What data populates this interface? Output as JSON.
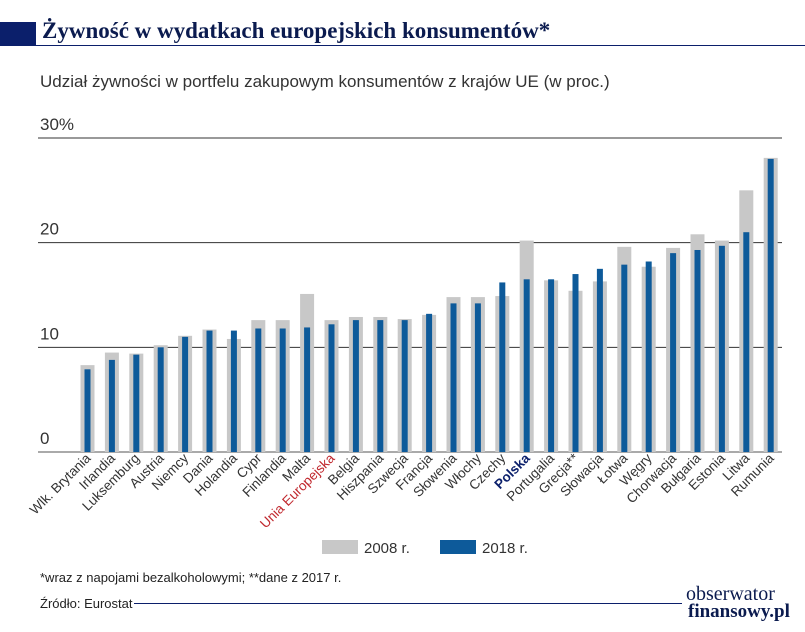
{
  "title": "Żywność w wydatkach europejskich konsumentów*",
  "subtitle": "Udział żywności w portfelu zakupowym konsumentów z krajów UE (w proc.)",
  "footnote": "*wraz z napojami bezalkoholowymi;  **dane z 2017 r.",
  "source": "Źródło: Eurostat",
  "logo": {
    "line1": "obserwator",
    "line2": "finansowy.pl"
  },
  "colors": {
    "s2008": "#c8c8c8",
    "s2018": "#0d5a9a",
    "highlight_red": "#c0272d",
    "highlight_navy": "#0b1f6b"
  },
  "chart_data": {
    "type": "bar",
    "ylim": [
      0,
      30
    ],
    "y_ticks": [
      {
        "value": 0,
        "label": "0"
      },
      {
        "value": 10,
        "label": "10"
      },
      {
        "value": 20,
        "label": "20"
      },
      {
        "value": 30,
        "label": "30%"
      }
    ],
    "categories": [
      "Wlk. Brytania",
      "Irlandia",
      "Luksemburg",
      "Austria",
      "Niemcy",
      "Dania",
      "Holandia",
      "Cypr",
      "Finlandia",
      "Malta",
      "Unia Europejska",
      "Belgia",
      "Hiszpania",
      "Szwecja",
      "Francja",
      "Słowenia",
      "Włochy",
      "Czechy",
      "Polska",
      "Portugalia",
      "Grecja**",
      "Słowacja",
      "Łotwa",
      "Węgry",
      "Chorwacja",
      "Bułgaria",
      "Estonia",
      "Litwa",
      "Rumunia"
    ],
    "highlighted": {
      "Unia Europejska": "red",
      "Polska": "navy"
    },
    "series": [
      {
        "name": "2008 r.",
        "values": [
          8.3,
          9.5,
          9.4,
          10.2,
          11.1,
          11.7,
          10.8,
          12.6,
          12.6,
          15.1,
          12.6,
          12.9,
          12.9,
          12.7,
          13.1,
          14.8,
          14.8,
          14.9,
          20.2,
          16.4,
          15.4,
          16.3,
          19.6,
          17.7,
          19.5,
          20.8,
          20.2,
          25.0,
          28.1
        ]
      },
      {
        "name": "2018 r.",
        "values": [
          7.9,
          8.8,
          9.3,
          10.0,
          11.0,
          11.6,
          11.6,
          11.8,
          11.8,
          11.9,
          12.2,
          12.6,
          12.6,
          12.6,
          13.2,
          14.2,
          14.2,
          16.2,
          16.5,
          16.5,
          17.0,
          17.5,
          17.9,
          18.2,
          19.0,
          19.3,
          19.7,
          21.0,
          28.0
        ]
      }
    ]
  }
}
